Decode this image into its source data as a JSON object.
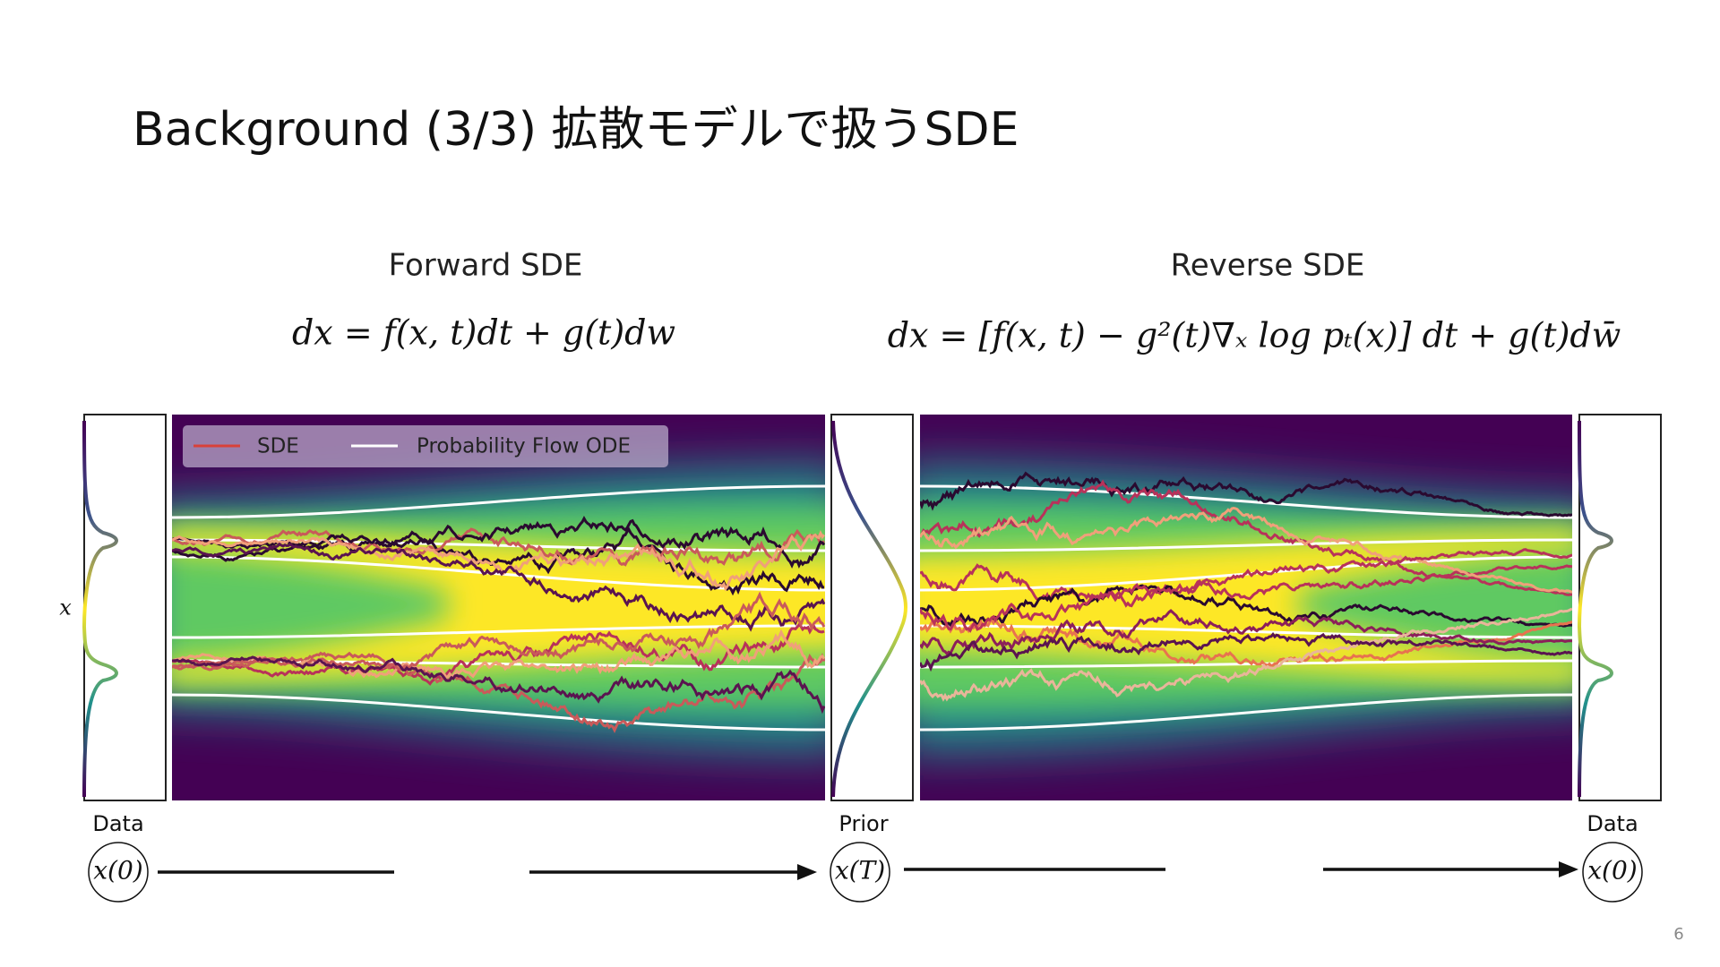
{
  "title": "Background (3/3)  拡散モデルで扱うSDE",
  "figure": {
    "forward": {
      "title": "Forward SDE",
      "equation": "dx = f(x, t)dt + g(t)dw"
    },
    "reverse": {
      "title": "Reverse SDE",
      "equation": "dx = [f(x, t) − g²(t)∇ₓ log pₜ(x)] dt + g(t)dw̄"
    },
    "legend": [
      "SDE",
      "Probability Flow ODE"
    ],
    "axis_label": "x",
    "labels": {
      "data_left": "Data",
      "prior": "Prior",
      "data_right": "Data"
    },
    "states": [
      "x(0)",
      "x(T)",
      "x(0)"
    ]
  },
  "page_number": "6"
}
